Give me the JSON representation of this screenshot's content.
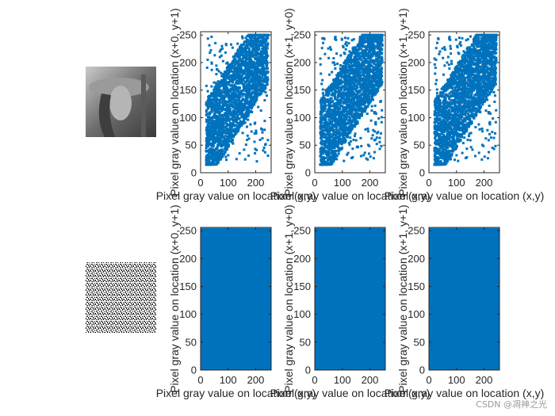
{
  "watermark": "CSDN @凋神之光",
  "colors": {
    "series": "#0072BD",
    "axis": "#262626",
    "background": "#ffffff"
  },
  "chart_data": [
    {
      "type": "scatter",
      "row": "original",
      "xlabel": "Pixel gray value on location (x,y)",
      "ylabel": "Pixel gray value on location (x+0, y+1)",
      "xlim": [
        0,
        256
      ],
      "ylim": [
        0,
        256
      ],
      "xticks": [
        "0",
        "100",
        "200"
      ],
      "yticks": [
        "0",
        "50",
        "100",
        "150",
        "200",
        "250"
      ],
      "series": [
        {
          "points": [
            [
              35,
              60
            ],
            [
              60,
              110
            ],
            [
              80,
              140
            ],
            [
              100,
              150
            ],
            [
              120,
              170
            ],
            [
              140,
              190
            ],
            [
              160,
              200
            ],
            [
              180,
              210
            ],
            [
              200,
              220
            ],
            [
              230,
              230
            ],
            [
              40,
              200
            ],
            [
              70,
              210
            ],
            [
              20,
              40
            ],
            [
              220,
              80
            ],
            [
              240,
              140
            ]
          ]
        }
      ]
    },
    {
      "type": "scatter",
      "row": "original",
      "xlabel": "Pixel gray value on location (x,y)",
      "ylabel": "Pixel gray value on location (x+1, y+0)",
      "xlim": [
        0,
        256
      ],
      "ylim": [
        0,
        256
      ],
      "xticks": [
        "0",
        "100",
        "200"
      ],
      "yticks": [
        "0",
        "50",
        "100",
        "150",
        "200",
        "250"
      ],
      "series": [
        {
          "points": [
            [
              35,
              50
            ],
            [
              60,
              90
            ],
            [
              80,
              120
            ],
            [
              100,
              140
            ],
            [
              120,
              165
            ],
            [
              140,
              185
            ],
            [
              160,
              200
            ],
            [
              180,
              210
            ],
            [
              200,
              220
            ],
            [
              230,
              235
            ],
            [
              40,
              150
            ],
            [
              70,
              200
            ],
            [
              20,
              30
            ],
            [
              220,
              60
            ],
            [
              240,
              130
            ]
          ]
        }
      ]
    },
    {
      "type": "scatter",
      "row": "original",
      "xlabel": "Pixel gray value on location (x,y)",
      "ylabel": "Pixel gray value on location (x+1, y+1)",
      "xlim": [
        0,
        256
      ],
      "ylim": [
        0,
        256
      ],
      "xticks": [
        "0",
        "100",
        "200"
      ],
      "yticks": [
        "0",
        "50",
        "100",
        "150",
        "200",
        "250"
      ],
      "series": [
        {
          "points": [
            [
              35,
              60
            ],
            [
              60,
              110
            ],
            [
              80,
              140
            ],
            [
              100,
              150
            ],
            [
              120,
              170
            ],
            [
              140,
              190
            ],
            [
              160,
              200
            ],
            [
              180,
              210
            ],
            [
              200,
              220
            ],
            [
              230,
              230
            ],
            [
              40,
              220
            ],
            [
              70,
              210
            ],
            [
              20,
              40
            ],
            [
              220,
              70
            ],
            [
              240,
              140
            ]
          ]
        }
      ]
    },
    {
      "type": "scatter",
      "row": "encrypted",
      "xlabel": "Pixel gray value on location (x,y)",
      "ylabel": "Pixel gray value on location (x+0, y+1)",
      "xlim": [
        0,
        256
      ],
      "ylim": [
        0,
        256
      ],
      "xticks": [
        "0",
        "100",
        "200"
      ],
      "yticks": [
        "0",
        "50",
        "100",
        "150",
        "200",
        "250"
      ],
      "series": [
        {
          "points": [
            [
              0,
              0
            ],
            [
              255,
              255
            ],
            [
              0,
              255
            ],
            [
              255,
              0
            ]
          ],
          "coverage": "uniform full range"
        }
      ]
    },
    {
      "type": "scatter",
      "row": "encrypted",
      "xlabel": "Pixel gray value on location (x,y)",
      "ylabel": "Pixel gray value on location (x+1, y+0)",
      "xlim": [
        0,
        256
      ],
      "ylim": [
        0,
        256
      ],
      "xticks": [
        "0",
        "100",
        "200"
      ],
      "yticks": [
        "0",
        "50",
        "100",
        "150",
        "200",
        "250"
      ],
      "series": [
        {
          "points": [
            [
              0,
              0
            ],
            [
              255,
              255
            ],
            [
              0,
              255
            ],
            [
              255,
              0
            ]
          ],
          "coverage": "uniform full range"
        }
      ]
    },
    {
      "type": "scatter",
      "row": "encrypted",
      "xlabel": "Pixel gray value on location (x,y)",
      "ylabel": "Pixel gray value on location (x+1, y+1)",
      "xlim": [
        0,
        256
      ],
      "ylim": [
        0,
        256
      ],
      "xticks": [
        "0",
        "100",
        "200"
      ],
      "yticks": [
        "0",
        "50",
        "100",
        "150",
        "200",
        "250"
      ],
      "series": [
        {
          "points": [
            [
              0,
              0
            ],
            [
              255,
              255
            ],
            [
              0,
              255
            ],
            [
              255,
              0
            ]
          ],
          "coverage": "uniform full range"
        }
      ]
    }
  ]
}
